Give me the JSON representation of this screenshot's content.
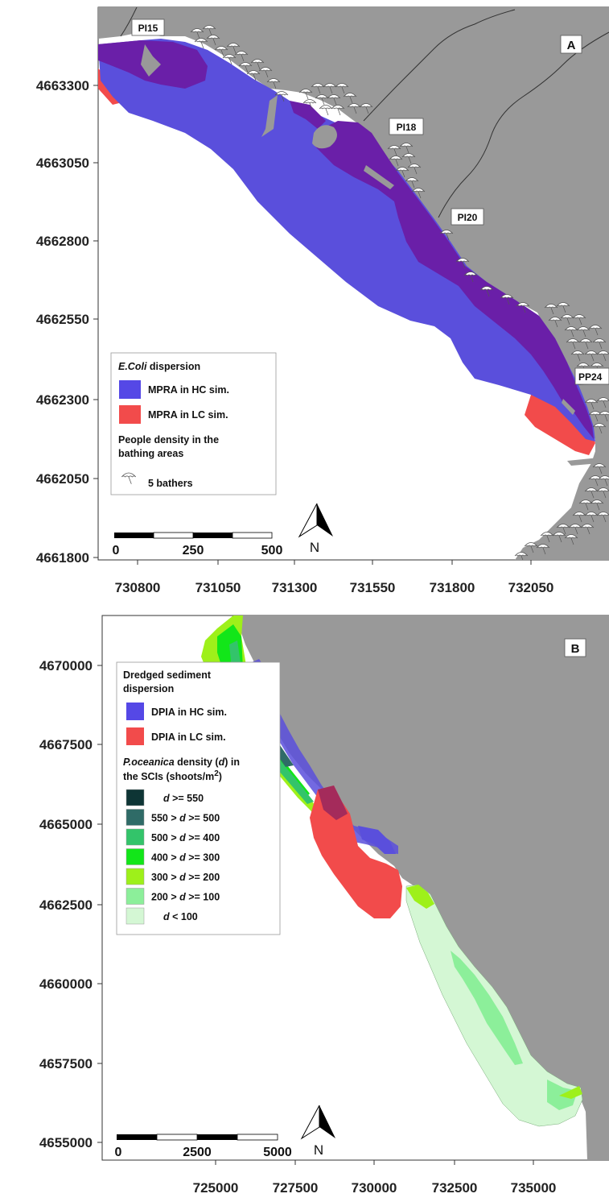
{
  "panelA": {
    "letter": "A",
    "y_ticks": [
      "4663300",
      "4663050",
      "4662800",
      "4662550",
      "4662300",
      "4662050",
      "4661800"
    ],
    "x_ticks": [
      "730800",
      "731050",
      "731300",
      "731550",
      "731800",
      "732050"
    ],
    "labels": {
      "pi15": "PI15",
      "pi18": "PI18",
      "pi20": "PI20",
      "pp24": "PP24"
    },
    "legend": {
      "title_italic": "E.Coli",
      "title_rest": " dispersion",
      "items": [
        {
          "label": "MPRA in HC sim.",
          "color": "#5548e6"
        },
        {
          "label": "MPRA in LC sim.",
          "color": "#f24b4b"
        }
      ],
      "people_line1": "People density in the",
      "people_line2": "bathing areas",
      "bather_label": "5 bathers"
    },
    "scalebar": [
      "0",
      "250",
      "500"
    ],
    "north": "N"
  },
  "panelB": {
    "letter": "B",
    "y_ticks": [
      "4670000",
      "4667500",
      "4665000",
      "4662500",
      "4660000",
      "4657500",
      "4655000"
    ],
    "x_ticks": [
      "725000",
      "727500",
      "730000",
      "732500",
      "735000"
    ],
    "legend": {
      "title_line1": "Dredged sediment",
      "title_line2": "dispersion",
      "items": [
        {
          "label": "DPIA in HC sim.",
          "color": "#5548e6"
        },
        {
          "label": "DPIA in LC sim.",
          "color": "#f24b4b"
        }
      ],
      "pos_italic": "P.oceanica",
      "pos_mid": " density (",
      "pos_d": "d",
      "pos_end": ") in",
      "pos_line2": "the SCIs (shoots/m",
      "pos_sup": "2",
      "pos_close": ")",
      "classes": [
        {
          "pre": "",
          "d": "d",
          "post": " >= 550",
          "color": "#0e3535"
        },
        {
          "pre": "550 > ",
          "d": "d",
          "post": " >= 500",
          "color": "#2f6b67"
        },
        {
          "pre": "500 > ",
          "d": "d",
          "post": " >= 400",
          "color": "#33c46a"
        },
        {
          "pre": "400 > ",
          "d": "d",
          "post": " >= 300",
          "color": "#12e619"
        },
        {
          "pre": "300 > ",
          "d": "d",
          "post": " >= 200",
          "color": "#9ef01a"
        },
        {
          "pre": "200 > ",
          "d": "d",
          "post": " >= 100",
          "color": "#8cef9a"
        },
        {
          "pre": "",
          "d": "d",
          "post": " < 100",
          "color": "#d4f7d4"
        }
      ]
    },
    "scalebar": [
      "0",
      "2500",
      "5000"
    ],
    "north": "N"
  },
  "colors": {
    "land": "#999999",
    "hc": "#5548e6",
    "lc": "#f24b4b",
    "overlap": "#6a1fa8"
  }
}
